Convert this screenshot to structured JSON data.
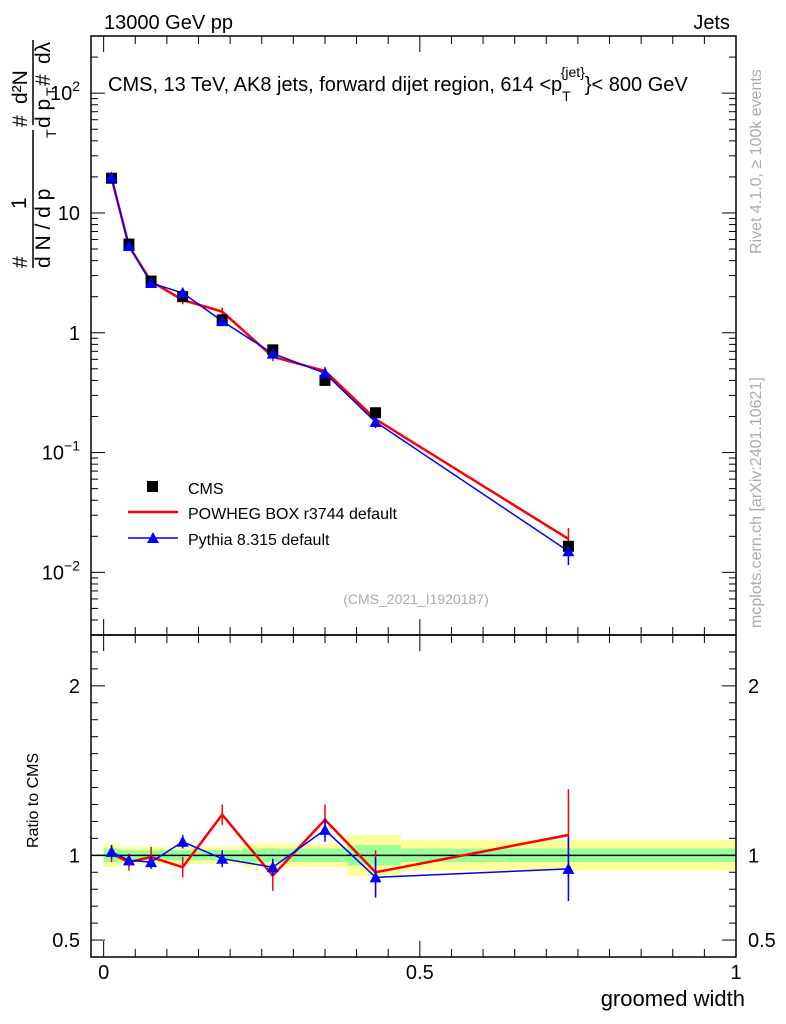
{
  "header": {
    "energy_label": "13000 GeV pp",
    "category_label": "Jets",
    "plot_title": "CMS, 13 TeV, AK8 jets, forward dijet region, 614 <p",
    "plot_title_sub": "T",
    "plot_title_sup": "{jet}",
    "plot_title_tail": "}< 800 GeV",
    "analysis_id": "(CMS_2021_I1920187)",
    "side_label_top": "Rivet 4.1.0, ≥ 100k events",
    "side_label_bottom": "mcplots.cern.ch [arXiv:2401.10621]"
  },
  "chart_data": [
    {
      "type": "line",
      "panel": "main",
      "yscale": "log",
      "ylim": [
        0.003,
        300
      ],
      "xlim": [
        -0.02,
        1.0
      ],
      "ylabel": "1/N dN/dp_T d²N/(dp_T dλ)",
      "ylabel_parts": {
        "hash1": "#",
        "one": "1",
        "dN": "d N / d p",
        "T1": "T",
        "hash2": "#",
        "dp": "d p",
        "T2": "T",
        "d2N": "d²N",
        "hash3": "#",
        "dlambda": "dλ"
      },
      "yticks": [
        {
          "value": 0.01,
          "base": "10",
          "exp": "−2"
        },
        {
          "value": 0.1,
          "base": "10",
          "exp": "−1"
        },
        {
          "value": 1,
          "label": "1"
        },
        {
          "value": 10,
          "label": "10"
        },
        {
          "value": 100,
          "base": "10",
          "exp": "2"
        }
      ],
      "legend": {
        "position": "lower-left",
        "entries": [
          "CMS",
          "POWHEG BOX r3744 default",
          "Pythia 8.315 default"
        ]
      },
      "series": [
        {
          "name": "CMS",
          "color": "#000000",
          "marker": "square",
          "x": [
            0.0125,
            0.04,
            0.075,
            0.125,
            0.1875,
            0.2675,
            0.35,
            0.43,
            0.735
          ],
          "y": [
            19.5,
            5.5,
            2.7,
            2.0,
            1.28,
            0.72,
            0.4,
            0.215,
            0.0165
          ]
        },
        {
          "name": "POWHEG BOX r3744 default",
          "color": "#ff0000",
          "marker": "none",
          "x": [
            0.0125,
            0.04,
            0.075,
            0.125,
            0.1875,
            0.2675,
            0.35,
            0.43,
            0.735
          ],
          "y": [
            19.6,
            5.3,
            2.68,
            1.88,
            1.5,
            0.63,
            0.48,
            0.19,
            0.019
          ],
          "yerr": [
            0.8,
            0.3,
            0.12,
            0.15,
            0.12,
            0.05,
            0.04,
            0.025,
            0.0045
          ]
        },
        {
          "name": "Pythia 8.315 default",
          "color": "#0000ff",
          "marker": "triangle",
          "x": [
            0.0125,
            0.04,
            0.075,
            0.125,
            0.1875,
            0.2675,
            0.35,
            0.43,
            0.735
          ],
          "y": [
            19.8,
            5.3,
            2.6,
            2.15,
            1.25,
            0.67,
            0.46,
            0.18,
            0.015
          ],
          "yerr": [
            0.7,
            0.25,
            0.12,
            0.12,
            0.08,
            0.05,
            0.04,
            0.02,
            0.0035
          ]
        }
      ]
    },
    {
      "type": "line",
      "panel": "ratio",
      "ylim": [
        0.4,
        2.3
      ],
      "xlim": [
        -0.02,
        1.0
      ],
      "ylabel": "Ratio to CMS",
      "xlabel": "groomed width",
      "yticks": [
        {
          "value": 0.5,
          "label": "0.5"
        },
        {
          "value": 1,
          "label": "1"
        },
        {
          "value": 2,
          "label": "2"
        }
      ],
      "xticks": [
        {
          "value": 0,
          "label": "0"
        },
        {
          "value": 0.5,
          "label": "0.5"
        },
        {
          "value": 1,
          "label": "1"
        }
      ],
      "bands": {
        "bin_edges": [
          0.0,
          0.025,
          0.055,
          0.095,
          0.155,
          0.22,
          0.315,
          0.385,
          0.47,
          1.0
        ],
        "total_unc": [
          0.07,
          0.05,
          0.05,
          0.05,
          0.05,
          0.07,
          0.07,
          0.12,
          0.09
        ],
        "stat_unc": [
          0.04,
          0.03,
          0.03,
          0.03,
          0.03,
          0.04,
          0.04,
          0.06,
          0.04
        ],
        "stat_color": "#99ff99",
        "total_color": "#ffff99"
      },
      "series": [
        {
          "name": "POWHEG BOX r3744 default",
          "color": "#ff0000",
          "x": [
            0.0125,
            0.04,
            0.075,
            0.125,
            0.1875,
            0.2675,
            0.35,
            0.43,
            0.735
          ],
          "y": [
            1.01,
            0.96,
            0.99,
            0.93,
            1.24,
            0.88,
            1.21,
            0.9,
            1.12
          ],
          "yerr": [
            0.05,
            0.05,
            0.06,
            0.06,
            0.06,
            0.09,
            0.09,
            0.13,
            0.27
          ]
        },
        {
          "name": "Pythia 8.315 default",
          "color": "#0000ff",
          "x": [
            0.0125,
            0.04,
            0.075,
            0.125,
            0.1875,
            0.2675,
            0.35,
            0.43,
            0.735
          ],
          "y": [
            1.02,
            0.97,
            0.96,
            1.08,
            0.98,
            0.93,
            1.15,
            0.87,
            0.92
          ],
          "yerr": [
            0.04,
            0.03,
            0.04,
            0.04,
            0.05,
            0.05,
            0.07,
            0.12,
            0.19
          ]
        }
      ]
    }
  ]
}
